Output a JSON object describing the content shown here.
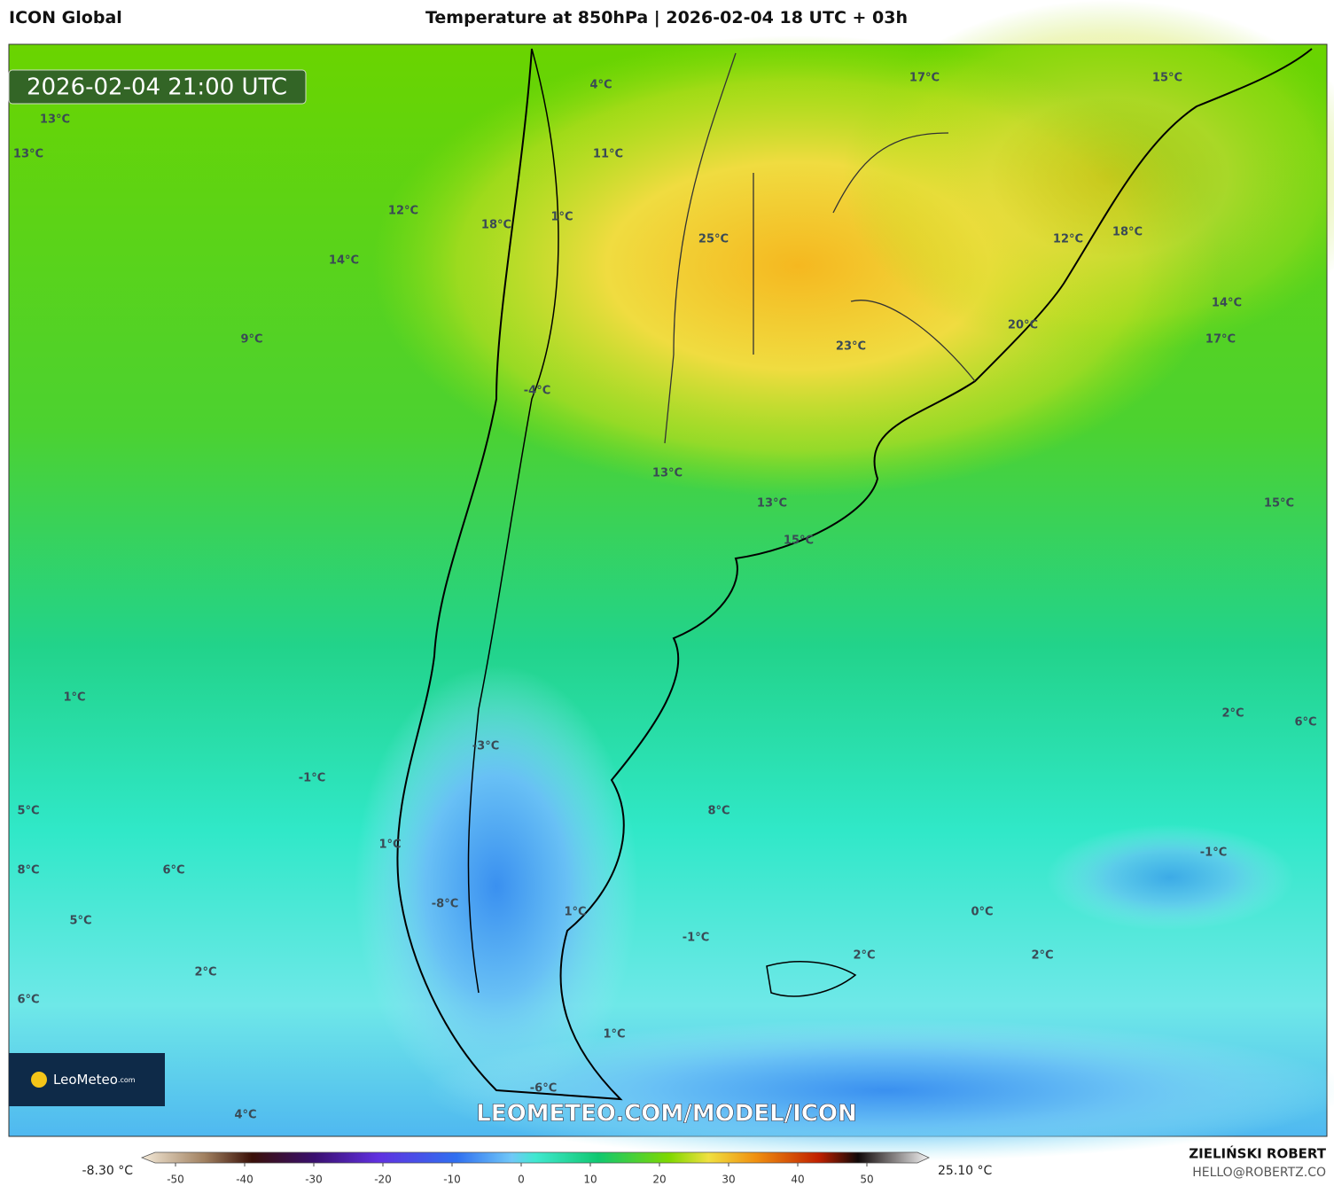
{
  "header": {
    "model": "ICON Global",
    "title": "Temperature at 850hPa | 2026-02-04 18 UTC + 03h"
  },
  "timestamp": "2026-02-04 21:00 UTC",
  "labels": [
    "13°C",
    "13°C",
    "12°C",
    "18°C",
    "14°C",
    "9°C",
    "4°C",
    "11°C",
    "1°C",
    "25°C",
    "-4°C",
    "17°C",
    "15°C",
    "12°C",
    "18°C",
    "14°C",
    "17°C",
    "20°C",
    "23°C",
    "13°C",
    "13°C",
    "15°C",
    "15°C",
    "1°C",
    "2°C",
    "6°C",
    "-3°C",
    "-1°C",
    "5°C",
    "8°C",
    "1°C",
    "-1°C",
    "8°C",
    "6°C",
    "5°C",
    "-8°C",
    "1°C",
    "0°C",
    "-1°C",
    "2°C",
    "2°C",
    "2°C",
    "6°C",
    "1°C",
    "-6°C",
    "4°C"
  ],
  "watermark": "LEOMETEO.COM/MODEL/ICON",
  "logo": {
    "name": "LeoMeteo",
    "suffix": ".com"
  },
  "colorbar": {
    "min_label": "-8.30 °C",
    "max_label": "25.10 °C",
    "ticks": [
      -50,
      -40,
      -30,
      -20,
      -10,
      0,
      10,
      20,
      30,
      40,
      50
    ]
  },
  "credit": {
    "author": "ZIELIŃSKI ROBERT",
    "email": "HELLO@ROBERTZ.CO"
  }
}
